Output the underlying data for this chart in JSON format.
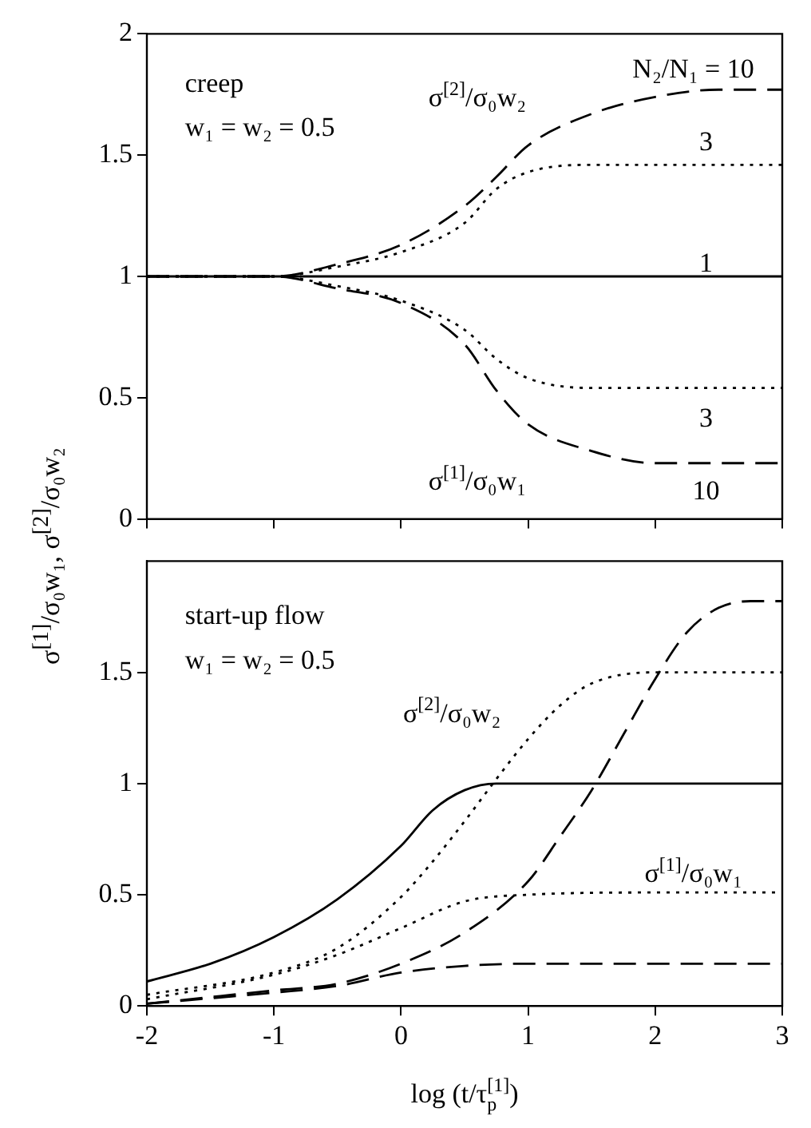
{
  "chart_data": [
    {
      "type": "line",
      "ylabel": "σ$^{[1]}$/σ₀w₁,  σ$^{[2]}$/σ₀w₂",
      "xlim": [
        -2,
        3
      ],
      "xticks": [
        {
          "value": -2,
          "label": null
        },
        {
          "value": -1,
          "label": null
        },
        {
          "value": 0,
          "label": null
        },
        {
          "value": 1,
          "label": null
        },
        {
          "value": 2,
          "label": null
        },
        {
          "value": 3,
          "label": null
        }
      ],
      "ylim": [
        0,
        2
      ],
      "yticks": [
        0,
        0.5,
        1,
        1.5,
        2
      ],
      "tick_labels": "y",
      "series": [
        {
          "color": "#000000",
          "line_style": "dashed",
          "x": [
            -2,
            -1,
            -0.5,
            0,
            0.5,
            0.75,
            1,
            1.5,
            2,
            2.5,
            3
          ],
          "values": [
            1,
            1,
            1.05,
            1.13,
            1.29,
            1.41,
            1.54,
            1.67,
            1.74,
            1.77,
            1.77
          ]
        },
        {
          "color": "#000000",
          "line_style": "dotted",
          "x": [
            -2,
            -1,
            -0.5,
            0,
            0.5,
            0.75,
            1,
            1.5,
            2,
            3
          ],
          "values": [
            1,
            1,
            1.04,
            1.1,
            1.22,
            1.36,
            1.43,
            1.46,
            1.46,
            1.46
          ]
        },
        {
          "color": "#000000",
          "line_style": "solid",
          "x": [
            -2,
            3
          ],
          "values": [
            1,
            1
          ]
        },
        {
          "color": "#000000",
          "line_style": "dotted",
          "x": [
            -2,
            -1,
            -0.5,
            0,
            0.5,
            0.75,
            1,
            1.5,
            2,
            3
          ],
          "values": [
            1,
            1,
            0.96,
            0.9,
            0.78,
            0.66,
            0.58,
            0.54,
            0.54,
            0.54
          ]
        },
        {
          "color": "#000000",
          "line_style": "dashed",
          "x": [
            -2,
            -1,
            -0.5,
            0,
            0.5,
            0.75,
            1,
            1.5,
            2,
            2.5,
            3
          ],
          "values": [
            1,
            1,
            0.95,
            0.89,
            0.72,
            0.53,
            0.39,
            0.28,
            0.23,
            0.23,
            0.23
          ]
        }
      ],
      "annotations": [
        "creep",
        "w₁ = w₂ = 0.5",
        "σ$^{[2]}$/σ₀w₂",
        "N₂/N₁ = 10",
        "3",
        "1",
        "3",
        "σ$^{[1]}$/σ₀w₁",
        "10"
      ]
    },
    {
      "type": "line",
      "xlabel": "log (t/τ$_{p}$$^{[1]}$)",
      "xlim": [
        -2,
        3
      ],
      "xticks": [
        -2,
        -1,
        0,
        1,
        2,
        3
      ],
      "ylim": [
        0,
        2
      ],
      "yticks": [
        0,
        0.5,
        1,
        1.5
      ],
      "series": [
        {
          "color": "#000000",
          "line_style": "solid",
          "x": [
            -2,
            -1.5,
            -1,
            -0.5,
            0,
            0.25,
            0.5,
            0.75,
            1,
            2,
            3
          ],
          "values": [
            0.11,
            0.19,
            0.31,
            0.48,
            0.72,
            0.88,
            0.97,
            1,
            1,
            1,
            1
          ]
        },
        {
          "color": "#000000",
          "line_style": "dotted",
          "x": [
            -2,
            -1,
            -0.5,
            0,
            0.25,
            0.5,
            0.75,
            1,
            1.25,
            1.5,
            2,
            3
          ],
          "values": [
            0.05,
            0.15,
            0.26,
            0.49,
            0.65,
            0.83,
            1.02,
            1.2,
            1.35,
            1.45,
            1.5,
            1.5
          ]
        },
        {
          "color": "#000000",
          "line_style": "dotted",
          "x": [
            -2,
            -1,
            -0.5,
            0,
            0.5,
            1,
            2,
            3
          ],
          "values": [
            0.03,
            0.14,
            0.23,
            0.35,
            0.47,
            0.5,
            0.51,
            0.51
          ]
        },
        {
          "color": "#000000",
          "line_style": "dashed",
          "x": [
            -2,
            -1,
            -0.5,
            0,
            0.5,
            1,
            1.25,
            1.5,
            1.75,
            2,
            2.25,
            2.5,
            2.75,
            3
          ],
          "values": [
            0.01,
            0.07,
            0.1,
            0.19,
            0.33,
            0.56,
            0.76,
            0.97,
            1.22,
            1.47,
            1.68,
            1.79,
            1.82,
            1.82
          ]
        },
        {
          "color": "#000000",
          "line_style": "dashed",
          "x": [
            -2,
            -1,
            -0.5,
            0,
            0.5,
            1,
            2,
            3
          ],
          "values": [
            0.01,
            0.06,
            0.09,
            0.15,
            0.18,
            0.19,
            0.19,
            0.19
          ]
        }
      ],
      "annotations": [
        "start-up flow",
        "w₁ = w₂ = 0.5",
        "σ$^{[2]}$/σ₀w₂",
        "σ$^{[1]}$/σ₀w₁"
      ]
    }
  ]
}
